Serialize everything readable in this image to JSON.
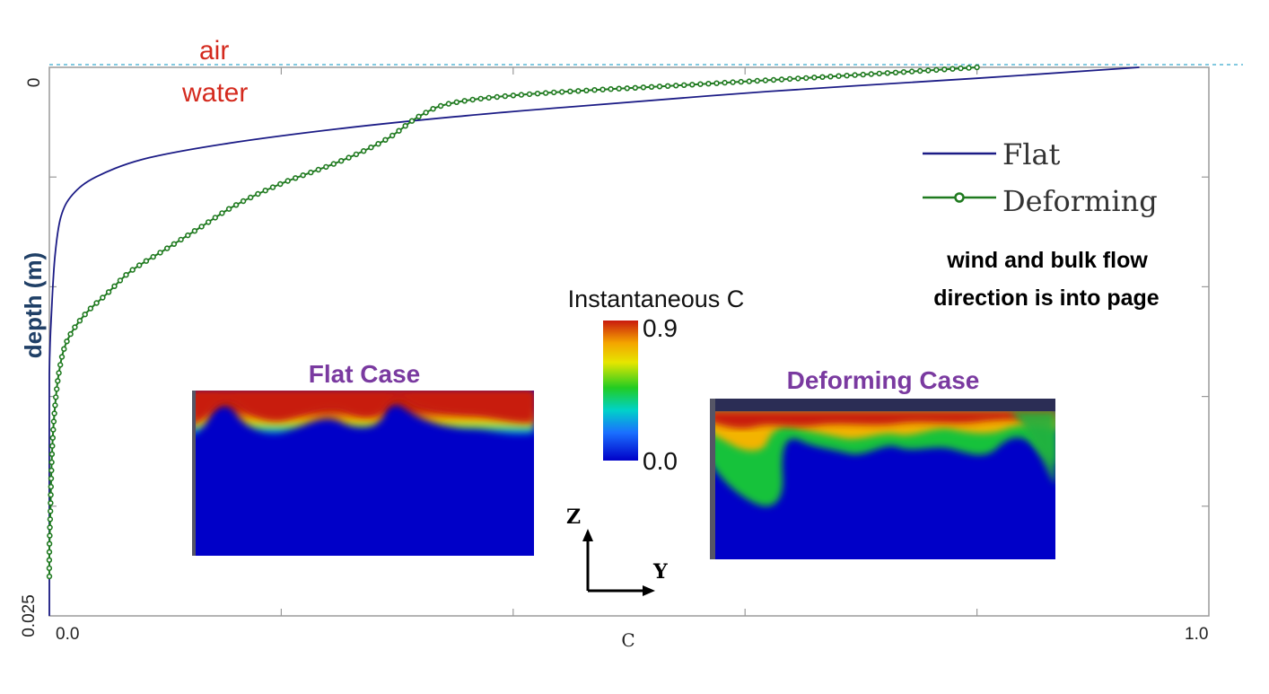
{
  "interface_labels": {
    "air": "air",
    "water": "water"
  },
  "chart_data": {
    "type": "line",
    "xlabel": "C",
    "ylabel": "depth (m)",
    "xlim": [
      0.0,
      1.0
    ],
    "ylim": [
      0,
      0.025
    ],
    "y_inverted": true,
    "x_tick_labels": [
      "0.0",
      "1.0"
    ],
    "y_tick_labels": [
      "0",
      "0.025"
    ],
    "grid": false,
    "legend_position": "top-right",
    "series": [
      {
        "name": "Flat",
        "color": "#1c1c86",
        "marker": "none",
        "points": [
          [
            0.94,
            0.0
          ],
          [
            0.8,
            0.0005
          ],
          [
            0.62,
            0.0011
          ],
          [
            0.45,
            0.0018
          ],
          [
            0.36,
            0.0022
          ],
          [
            0.25,
            0.0028
          ],
          [
            0.15,
            0.0035
          ],
          [
            0.08,
            0.0042
          ],
          [
            0.04,
            0.005
          ],
          [
            0.02,
            0.0058
          ],
          [
            0.01,
            0.0068
          ],
          [
            0.005,
            0.0085
          ],
          [
            0.002,
            0.011
          ],
          [
            0.0,
            0.014
          ],
          [
            0.0,
            0.02
          ],
          [
            0.0,
            0.025
          ]
        ]
      },
      {
        "name": "Deforming",
        "color": "#1f7a1f",
        "marker": "circle",
        "points": [
          [
            0.8,
            0.0
          ],
          [
            0.68,
            0.0004
          ],
          [
            0.55,
            0.0008
          ],
          [
            0.42,
            0.0012
          ],
          [
            0.35,
            0.0016
          ],
          [
            0.32,
            0.0022
          ],
          [
            0.29,
            0.0033
          ],
          [
            0.25,
            0.0043
          ],
          [
            0.2,
            0.0053
          ],
          [
            0.16,
            0.0063
          ],
          [
            0.13,
            0.0073
          ],
          [
            0.1,
            0.0083
          ],
          [
            0.07,
            0.0093
          ],
          [
            0.05,
            0.0103
          ],
          [
            0.03,
            0.0113
          ],
          [
            0.015,
            0.0125
          ],
          [
            0.008,
            0.014
          ],
          [
            0.004,
            0.016
          ],
          [
            0.002,
            0.018
          ],
          [
            0.001,
            0.02
          ],
          [
            0.0,
            0.022
          ],
          [
            0.0,
            0.0232
          ]
        ]
      }
    ]
  },
  "annotation": {
    "line1": "wind and bulk flow",
    "line2": "direction is into page"
  },
  "colorbar": {
    "title": "Instantaneous  C",
    "max_label": "0.9",
    "min_label": "0.0",
    "stops": [
      "#c91a0e",
      "#f4a400",
      "#e6e600",
      "#22cc22",
      "#00d2c8",
      "#1a70ff",
      "#0000c8"
    ]
  },
  "insets": {
    "flat_title": "Flat  Case",
    "deforming_title": "Deforming Case"
  },
  "axes_glyph": {
    "z_label": "Z",
    "y_label": "Y"
  }
}
